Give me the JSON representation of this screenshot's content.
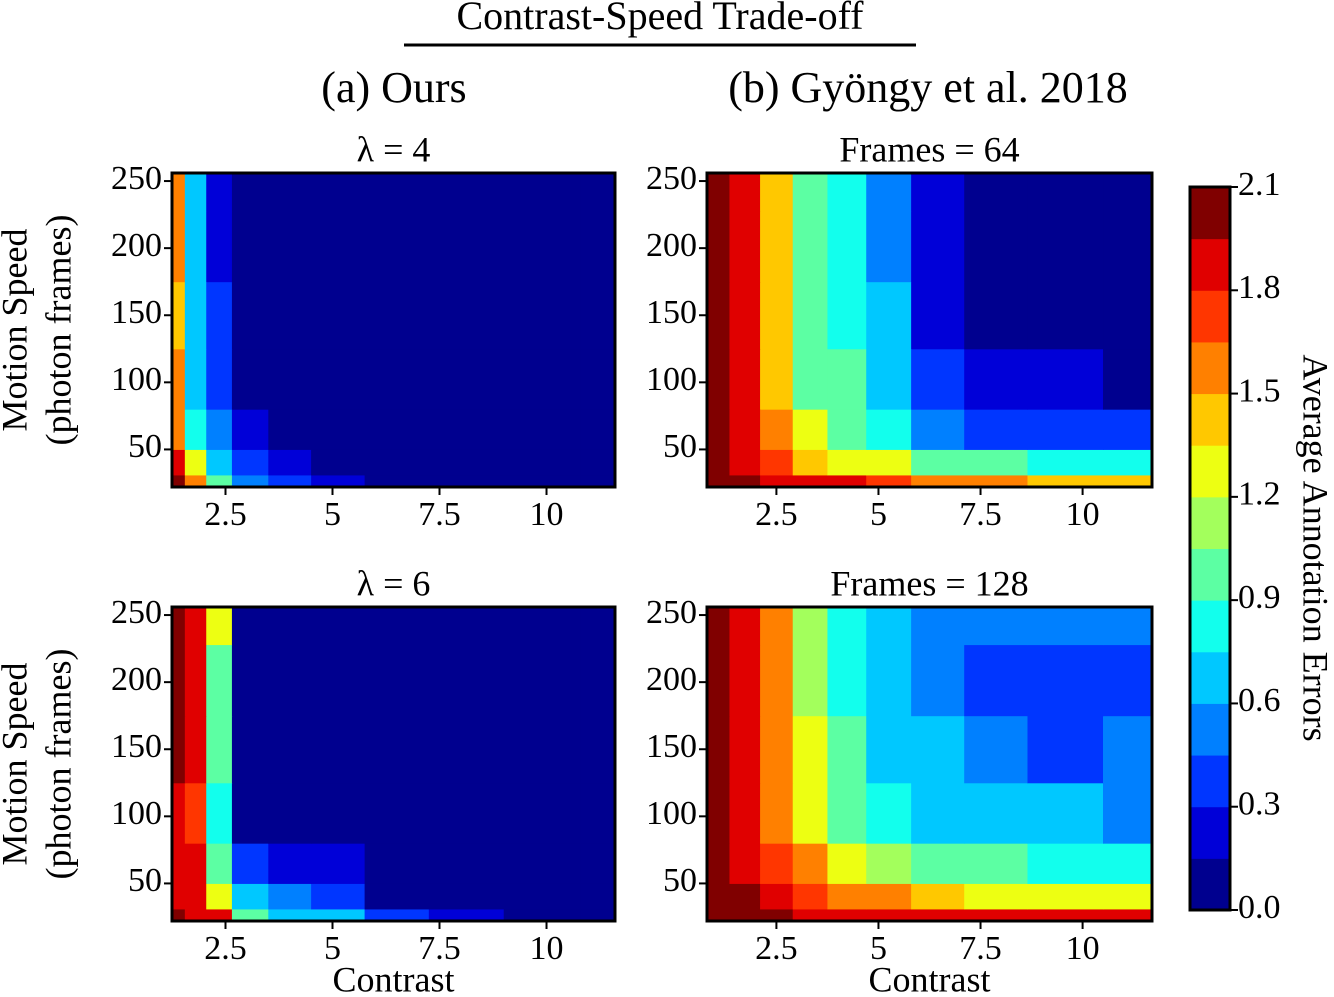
{
  "title": "Contrast-Speed Trade-off",
  "column_titles": [
    "(a) Ours",
    "(b) Gyöngy et al. 2018"
  ],
  "colorbar": {
    "label": "Average Annotation Errors",
    "lim": [
      0,
      2.1
    ],
    "levels": [
      0,
      0.15,
      0.3,
      0.45,
      0.6,
      0.75,
      0.9,
      1.05,
      1.2,
      1.35,
      1.5,
      1.65,
      1.8,
      1.95,
      2.1
    ],
    "colors": [
      "#00008f",
      "#0000d8",
      "#0036ff",
      "#0080ff",
      "#00c8ff",
      "#12ffed",
      "#5cffa3",
      "#a3ff5c",
      "#edff12",
      "#ffc800",
      "#ff8000",
      "#ff3600",
      "#e00000",
      "#800000"
    ],
    "ticks": [
      {
        "value": 0,
        "label": "0.0"
      },
      0.3,
      0.6,
      0.9,
      1.2,
      1.5,
      1.8,
      2.1
    ]
  },
  "chart_data": [
    {
      "type": "contour",
      "title": "λ = 4",
      "ylabel": [
        "Motion Speed",
        "(photon frames)"
      ],
      "xlim": [
        1.25,
        11.6
      ],
      "ylim": [
        22,
        256
      ],
      "xticks": [
        2.5,
        5,
        7.5,
        10
      ],
      "yticks": [
        50,
        100,
        150,
        200,
        250
      ],
      "x": [
        1.3,
        1.8,
        2.3,
        3,
        4,
        5,
        6.5,
        8,
        10,
        11.6
      ],
      "y": [
        22,
        40,
        60,
        100,
        150,
        200,
        256
      ],
      "z": [
        [
          2.0,
          1.6,
          0.9,
          0.5,
          0.3,
          0.2,
          0.1,
          0.1,
          0.1,
          0.1
        ],
        [
          1.8,
          1.2,
          0.7,
          0.3,
          0.15,
          0.1,
          0.1,
          0.1,
          0.1,
          0.1
        ],
        [
          1.6,
          0.8,
          0.5,
          0.2,
          0.1,
          0.1,
          0.1,
          0.05,
          0.05,
          0.05
        ],
        [
          1.5,
          0.6,
          0.3,
          0.1,
          0.1,
          0.05,
          0.05,
          0.05,
          0.05,
          0.05
        ],
        [
          1.4,
          0.6,
          0.3,
          0.1,
          0.05,
          0.05,
          0.05,
          0.05,
          0.05,
          0.05
        ],
        [
          1.5,
          0.6,
          0.25,
          0.1,
          0.05,
          0.05,
          0.05,
          0.05,
          0.05,
          0.05
        ],
        [
          1.5,
          0.6,
          0.25,
          0.1,
          0.05,
          0.05,
          0.05,
          0.05,
          0.05,
          0.05
        ]
      ]
    },
    {
      "type": "contour",
      "title": "Frames = 64",
      "xlim": [
        0.8,
        11.7
      ],
      "ylim": [
        22,
        256
      ],
      "xticks": [
        2.5,
        5,
        7.5,
        10
      ],
      "yticks": [
        50,
        100,
        150,
        200,
        250
      ],
      "x": [
        1.0,
        1.7,
        2.5,
        3.3,
        4.2,
        5.2,
        6.4,
        7.8,
        9.5,
        11.5
      ],
      "y": [
        22,
        40,
        60,
        100,
        150,
        200,
        256
      ],
      "z": [
        [
          2.1,
          2.0,
          1.9,
          1.8,
          1.8,
          1.7,
          1.6,
          1.5,
          1.4,
          1.4
        ],
        [
          2.1,
          1.9,
          1.7,
          1.4,
          1.3,
          1.2,
          1.0,
          0.9,
          0.8,
          0.8
        ],
        [
          2.1,
          1.8,
          1.5,
          1.2,
          1.0,
          0.8,
          0.5,
          0.4,
          0.4,
          0.35
        ],
        [
          2.1,
          1.8,
          1.4,
          1.0,
          0.9,
          0.7,
          0.3,
          0.2,
          0.15,
          0.1
        ],
        [
          2.1,
          1.8,
          1.4,
          1.0,
          0.8,
          0.6,
          0.2,
          0.1,
          0.1,
          0.1
        ],
        [
          2.1,
          1.8,
          1.4,
          1.0,
          0.8,
          0.5,
          0.15,
          0.1,
          0.1,
          0.1
        ],
        [
          2.1,
          1.8,
          1.4,
          1.0,
          0.8,
          0.5,
          0.15,
          0.1,
          0.1,
          0.1
        ]
      ]
    },
    {
      "type": "contour",
      "title": "λ = 6",
      "ylabel": [
        "Motion Speed",
        "(photon frames)"
      ],
      "xlabel": "Contrast",
      "xlim": [
        1.25,
        11.6
      ],
      "ylim": [
        22,
        256
      ],
      "xticks": [
        2.5,
        5,
        7.5,
        10
      ],
      "yticks": [
        50,
        100,
        150,
        200,
        250
      ],
      "x": [
        1.3,
        1.8,
        2.3,
        3,
        4,
        5,
        6.5,
        8,
        10,
        11.6
      ],
      "y": [
        22,
        40,
        60,
        100,
        150,
        200,
        256
      ],
      "z": [
        [
          2.0,
          1.9,
          1.8,
          1.0,
          0.7,
          0.6,
          0.4,
          0.2,
          0.1,
          0.1
        ],
        [
          1.9,
          1.8,
          1.3,
          0.6,
          0.5,
          0.4,
          0.1,
          0.05,
          0.05,
          0.05
        ],
        [
          1.9,
          1.8,
          1.0,
          0.3,
          0.2,
          0.15,
          0.05,
          0.05,
          0.05,
          0.05
        ],
        [
          1.9,
          1.7,
          0.8,
          0.1,
          0.05,
          0.05,
          0.05,
          0.05,
          0.05,
          0.05
        ],
        [
          2.0,
          1.8,
          0.9,
          0.05,
          0.05,
          0.05,
          0.05,
          0.05,
          0.05,
          0.05
        ],
        [
          2.0,
          1.8,
          1.0,
          0.05,
          0.05,
          0.05,
          0.05,
          0.05,
          0.05,
          0.05
        ],
        [
          2.0,
          1.9,
          1.2,
          0.1,
          0.05,
          0.05,
          0.05,
          0.05,
          0.05,
          0.05
        ]
      ]
    },
    {
      "type": "contour",
      "title": "Frames = 128",
      "xlabel": "Contrast",
      "xlim": [
        0.8,
        11.7
      ],
      "ylim": [
        22,
        256
      ],
      "xticks": [
        2.5,
        5,
        7.5,
        10
      ],
      "yticks": [
        50,
        100,
        150,
        200,
        250
      ],
      "x": [
        1.0,
        1.7,
        2.5,
        3.3,
        4.2,
        5.2,
        6.4,
        7.8,
        9.5,
        11.5
      ],
      "y": [
        22,
        40,
        60,
        100,
        150,
        200,
        256
      ],
      "z": [
        [
          2.1,
          2.0,
          2.0,
          1.9,
          1.9,
          1.9,
          1.8,
          1.8,
          1.8,
          1.8
        ],
        [
          2.1,
          2.0,
          1.8,
          1.7,
          1.6,
          1.5,
          1.4,
          1.3,
          1.2,
          1.2
        ],
        [
          2.1,
          1.9,
          1.7,
          1.5,
          1.3,
          1.1,
          1.0,
          0.9,
          0.8,
          0.8
        ],
        [
          2.1,
          1.9,
          1.6,
          1.3,
          1.0,
          0.8,
          0.7,
          0.6,
          0.6,
          0.5
        ],
        [
          2.1,
          1.9,
          1.5,
          1.2,
          0.9,
          0.7,
          0.6,
          0.5,
          0.4,
          0.5
        ],
        [
          2.1,
          1.9,
          1.5,
          1.1,
          0.8,
          0.6,
          0.5,
          0.4,
          0.35,
          0.4
        ],
        [
          2.1,
          1.9,
          1.5,
          1.1,
          0.8,
          0.6,
          0.55,
          0.5,
          0.5,
          0.5
        ]
      ]
    }
  ]
}
